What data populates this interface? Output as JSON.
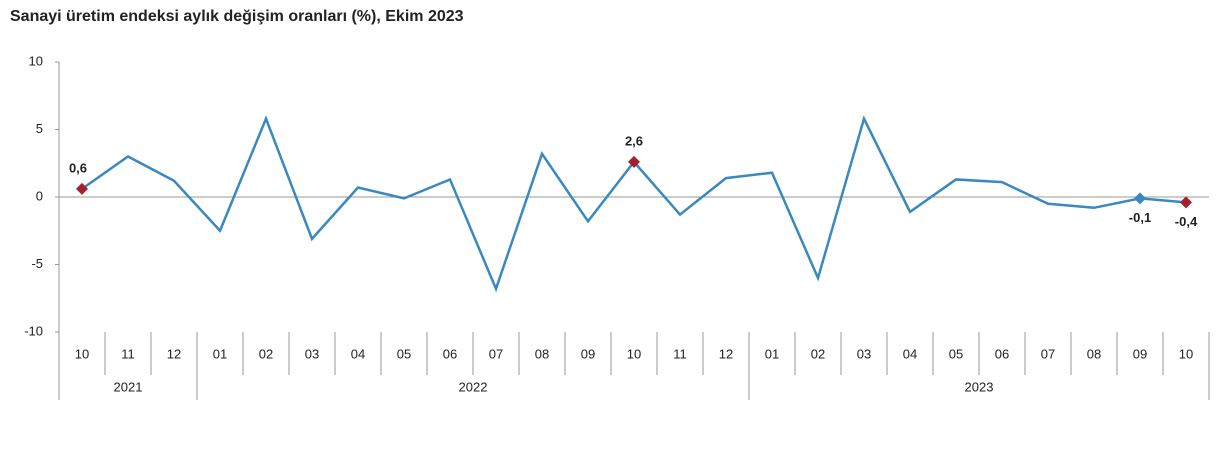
{
  "chart_data": {
    "type": "line",
    "title": "Sanayi üretim endeksi aylık değişim oranları (%), Ekim 2023",
    "categories": [
      "10",
      "11",
      "12",
      "01",
      "02",
      "03",
      "04",
      "05",
      "06",
      "07",
      "08",
      "09",
      "10",
      "11",
      "12",
      "01",
      "02",
      "03",
      "04",
      "05",
      "06",
      "07",
      "08",
      "09",
      "10"
    ],
    "years": [
      "2021",
      null,
      null,
      "2022",
      null,
      null,
      null,
      null,
      null,
      null,
      null,
      null,
      null,
      null,
      null,
      "2023",
      null,
      null,
      null,
      null,
      null,
      null,
      null,
      null,
      null
    ],
    "series": [
      {
        "name": "Aylık değişim",
        "color": "#3a88c0",
        "values": [
          0.6,
          3.0,
          1.2,
          -2.5,
          5.8,
          -3.1,
          0.7,
          -0.1,
          1.3,
          -6.8,
          3.2,
          -1.8,
          2.6,
          -1.3,
          1.4,
          1.8,
          -6.0,
          5.8,
          -1.1,
          1.3,
          1.1,
          -0.5,
          -0.8,
          -0.1,
          -0.4
        ],
        "value_labels": [
          "0,6",
          null,
          null,
          null,
          null,
          null,
          null,
          null,
          null,
          null,
          null,
          null,
          "2,6",
          null,
          null,
          null,
          null,
          null,
          null,
          null,
          null,
          null,
          null,
          "-0,1",
          "-0,4"
        ],
        "marker_colors": [
          "#a3212a",
          null,
          null,
          null,
          null,
          null,
          null,
          null,
          null,
          null,
          null,
          null,
          "#a3212a",
          null,
          null,
          null,
          null,
          null,
          null,
          null,
          null,
          null,
          null,
          "#3a88c0",
          "#a3212a"
        ]
      }
    ],
    "ylim": [
      -10,
      10
    ],
    "yticks": [
      10,
      5,
      0,
      -5,
      -10
    ]
  }
}
